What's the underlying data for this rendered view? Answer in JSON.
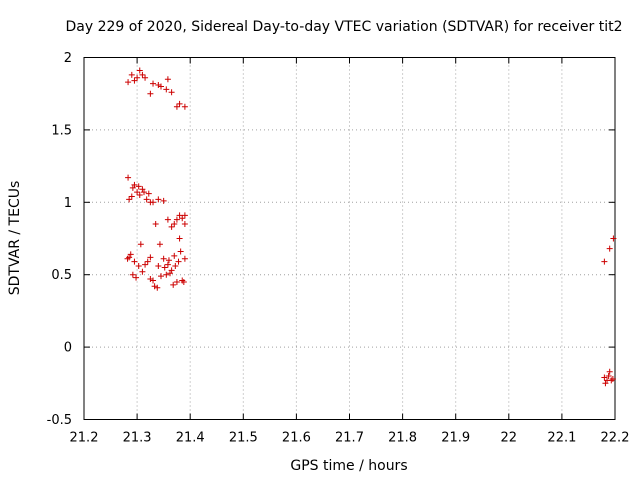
{
  "chart_data": {
    "type": "scatter",
    "title": "Day 229 of 2020, Sidereal Day-to-day VTEC variation (SDTVAR) for receiver tit2",
    "xlabel": "GPS time / hours",
    "ylabel": "SDTVAR / TECUs",
    "xlim": [
      21.2,
      22.2
    ],
    "ylim": [
      -0.5,
      2
    ],
    "x_ticks": [
      "21.2",
      "21.3",
      "21.4",
      "21.5",
      "21.6",
      "21.7",
      "21.8",
      "21.9",
      "22",
      "22.1",
      "22.2"
    ],
    "y_ticks": [
      "-0.5",
      "0",
      "0.5",
      "1",
      "1.5",
      "2"
    ],
    "grid": true,
    "marker": "+",
    "color": "#cc0000",
    "series": [
      {
        "name": "SDTVAR",
        "points": [
          [
            21.283,
            1.83
          ],
          [
            21.29,
            1.88
          ],
          [
            21.295,
            1.84
          ],
          [
            21.3,
            1.86
          ],
          [
            21.305,
            1.91
          ],
          [
            21.31,
            1.88
          ],
          [
            21.315,
            1.86
          ],
          [
            21.325,
            1.75
          ],
          [
            21.33,
            1.82
          ],
          [
            21.34,
            1.81
          ],
          [
            21.345,
            1.8
          ],
          [
            21.355,
            1.78
          ],
          [
            21.358,
            1.85
          ],
          [
            21.365,
            1.76
          ],
          [
            21.375,
            1.66
          ],
          [
            21.38,
            1.68
          ],
          [
            21.39,
            1.66
          ],
          [
            21.283,
            1.17
          ],
          [
            21.285,
            1.02
          ],
          [
            21.29,
            1.04
          ],
          [
            21.292,
            1.1
          ],
          [
            21.295,
            1.12
          ],
          [
            21.3,
            1.07
          ],
          [
            21.303,
            1.11
          ],
          [
            21.305,
            1.05
          ],
          [
            21.31,
            1.09
          ],
          [
            21.313,
            1.07
          ],
          [
            21.318,
            1.02
          ],
          [
            21.322,
            1.06
          ],
          [
            21.325,
            1.0
          ],
          [
            21.33,
            1.0
          ],
          [
            21.335,
            0.85
          ],
          [
            21.34,
            1.02
          ],
          [
            21.35,
            1.01
          ],
          [
            21.358,
            0.88
          ],
          [
            21.365,
            0.83
          ],
          [
            21.37,
            0.85
          ],
          [
            21.375,
            0.88
          ],
          [
            21.38,
            0.91
          ],
          [
            21.385,
            0.89
          ],
          [
            21.39,
            0.91
          ],
          [
            21.39,
            0.85
          ],
          [
            21.282,
            0.61
          ],
          [
            21.285,
            0.62
          ],
          [
            21.288,
            0.64
          ],
          [
            21.292,
            0.5
          ],
          [
            21.295,
            0.59
          ],
          [
            21.298,
            0.48
          ],
          [
            21.303,
            0.56
          ],
          [
            21.307,
            0.71
          ],
          [
            21.31,
            0.52
          ],
          [
            21.315,
            0.57
          ],
          [
            21.32,
            0.59
          ],
          [
            21.325,
            0.62
          ],
          [
            21.325,
            0.47
          ],
          [
            21.33,
            0.46
          ],
          [
            21.333,
            0.42
          ],
          [
            21.338,
            0.41
          ],
          [
            21.34,
            0.56
          ],
          [
            21.343,
            0.71
          ],
          [
            21.345,
            0.49
          ],
          [
            21.35,
            0.61
          ],
          [
            21.352,
            0.55
          ],
          [
            21.355,
            0.5
          ],
          [
            21.358,
            0.57
          ],
          [
            21.36,
            0.6
          ],
          [
            21.362,
            0.51
          ],
          [
            21.365,
            0.53
          ],
          [
            21.368,
            0.43
          ],
          [
            21.37,
            0.63
          ],
          [
            21.372,
            0.56
          ],
          [
            21.375,
            0.45
          ],
          [
            21.378,
            0.59
          ],
          [
            21.38,
            0.75
          ],
          [
            21.382,
            0.66
          ],
          [
            21.385,
            0.46
          ],
          [
            21.388,
            0.45
          ],
          [
            21.39,
            0.61
          ],
          [
            22.18,
            0.59
          ],
          [
            22.19,
            0.68
          ],
          [
            22.197,
            0.75
          ],
          [
            22.18,
            -0.21
          ],
          [
            22.182,
            -0.25
          ],
          [
            22.185,
            -0.23
          ],
          [
            22.188,
            -0.2
          ],
          [
            22.19,
            -0.17
          ],
          [
            22.193,
            -0.23
          ],
          [
            22.196,
            -0.22
          ]
        ]
      }
    ]
  }
}
